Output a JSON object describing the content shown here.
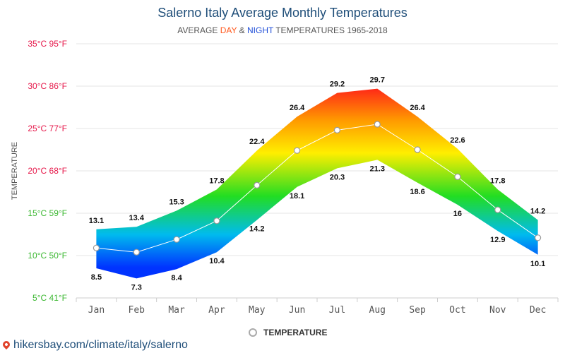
{
  "chart_data": {
    "type": "area",
    "title": "Salerno Italy Average Monthly Temperatures",
    "subtitle": {
      "prefix": "AVERAGE ",
      "day": "DAY",
      "amp": " & ",
      "night": "NIGHT",
      "suffix": " TEMPERATURES 1965-2018"
    },
    "ylabel": "TEMPERATURE",
    "categories": [
      "Jan",
      "Feb",
      "Mar",
      "Apr",
      "May",
      "Jun",
      "Jul",
      "Aug",
      "Sep",
      "Oct",
      "Nov",
      "Dec"
    ],
    "y_ticks": [
      {
        "value": 5,
        "label": "5°C 41°F"
      },
      {
        "value": 10,
        "label": "10°C 50°F"
      },
      {
        "value": 15,
        "label": "15°C 59°F"
      },
      {
        "value": 20,
        "label": "20°C 68°F"
      },
      {
        "value": 25,
        "label": "25°C 77°F"
      },
      {
        "value": 30,
        "label": "30°C 86°F"
      },
      {
        "value": 35,
        "label": "35°C 95°F"
      }
    ],
    "ylim": [
      5,
      35
    ],
    "series": [
      {
        "key": "day",
        "values": [
          13.1,
          13.4,
          15.3,
          17.8,
          22.4,
          26.4,
          29.2,
          29.7,
          26.4,
          22.6,
          17.8,
          14.2
        ]
      },
      {
        "key": "night",
        "values": [
          8.5,
          7.3,
          8.4,
          10.4,
          14.2,
          18.1,
          20.3,
          21.3,
          18.6,
          16,
          12.9,
          10.1
        ]
      },
      {
        "name": "TEMPERATURE",
        "key": "mean",
        "values": [
          10.9,
          10.4,
          11.9,
          14.1,
          18.3,
          22.4,
          24.8,
          25.5,
          22.5,
          19.3,
          15.4,
          12.1
        ]
      }
    ],
    "grid": true,
    "legend": "bottom-center",
    "colors": {
      "hot": "#ff1a1a",
      "warm": "#ff9900",
      "mild": "#ffee00",
      "cool": "#22dd22",
      "cold": "#00bbee",
      "freezing": "#0033ff",
      "grid": "#e6e6e6",
      "tick_hot": "#e6194b",
      "tick_cool": "#3cb832"
    }
  },
  "legend": {
    "label": "TEMPERATURE"
  },
  "source": {
    "text": "hikersbay.com/climate/italy/salerno"
  }
}
